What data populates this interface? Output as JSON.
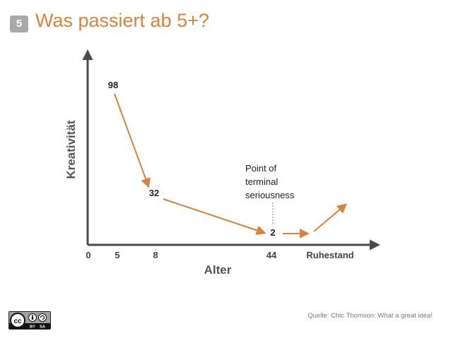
{
  "slide": {
    "number": "5",
    "title": "Was passiert ab 5+?"
  },
  "diagram": {
    "y_axis_label": "Kreativität",
    "x_axis_label": "Alter",
    "x_ticks": [
      "0",
      "5",
      "8",
      "44",
      "Ruhestand"
    ],
    "points": [
      "98",
      "32",
      "2"
    ],
    "annotation_lines": [
      "Point of",
      "terminal",
      "seriousness"
    ],
    "colors": {
      "arrow": "#d9823b",
      "axis": "#4a4a4a",
      "title": "#d9823b"
    }
  },
  "footer": {
    "source": "Quelle: Chic Thomson: What a great idea!",
    "license_labels": {
      "cc": "cc",
      "by": "BY",
      "sa": "SA"
    }
  }
}
